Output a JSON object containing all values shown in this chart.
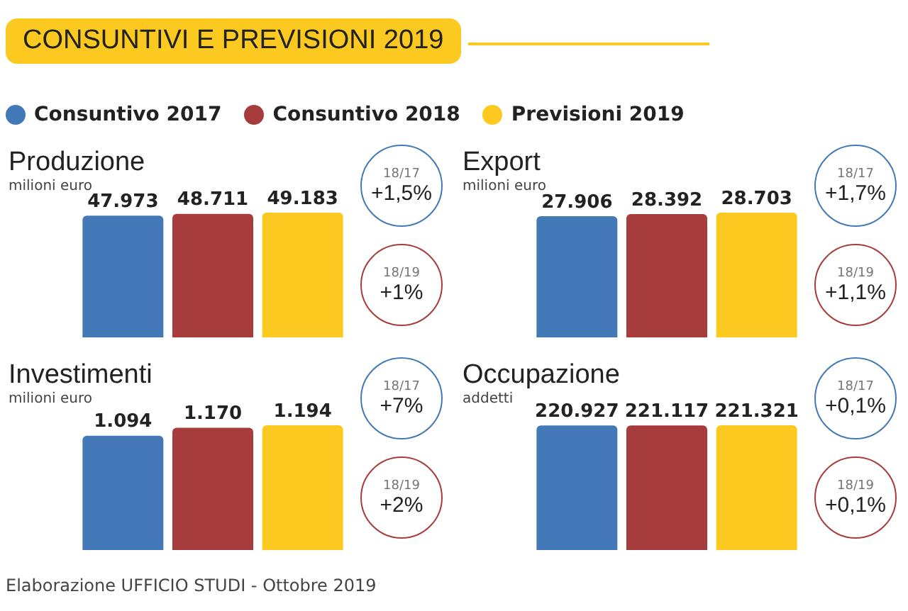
{
  "chart_data": [
    {
      "type": "other",
      "title": "CONSUNTIVI E PREVISIONI 2019",
      "annotations": [
        "Elaborazione UFFICIO STUDI - Ottobre 2019"
      ]
    },
    {
      "type": "bar",
      "title": "Produzione",
      "subtitle": "milioni euro",
      "categories": [
        null
      ],
      "legend": "top",
      "series": [
        {
          "name": "Consuntivo 2017",
          "color": "#4479b7",
          "values": [
            47973
          ],
          "value_labels": [
            "47.973"
          ]
        },
        {
          "name": "Consuntivo 2018",
          "color": "#a63d3c",
          "values": [
            48711
          ],
          "value_labels": [
            "48.711"
          ]
        },
        {
          "name": "Previsioni 2019",
          "color": "#fcc921",
          "values": [
            49183
          ],
          "value_labels": [
            "49.183"
          ]
        }
      ],
      "annotations": [
        "18/17 +1,5%",
        "18/19 +1%"
      ]
    },
    {
      "type": "bar",
      "title": "Export",
      "subtitle": "milioni euro",
      "categories": [
        null
      ],
      "series": [
        {
          "color": "#4479b7",
          "values": [
            27906
          ],
          "value_labels": [
            "27.906"
          ]
        },
        {
          "color": "#a63d3c",
          "values": [
            28392
          ],
          "value_labels": [
            "28.392"
          ]
        },
        {
          "color": "#fcc921",
          "values": [
            28703
          ],
          "value_labels": [
            "28.703"
          ]
        }
      ],
      "annotations": [
        "18/17 +1,7%",
        "18/19 +1,1%"
      ]
    },
    {
      "type": "bar",
      "title": "Investimenti",
      "subtitle": "milioni euro",
      "categories": [
        null
      ],
      "series": [
        {
          "color": "#4479b7",
          "values": [
            1094
          ],
          "value_labels": [
            "1.094"
          ]
        },
        {
          "color": "#a63d3c",
          "values": [
            1170
          ],
          "value_labels": [
            "1.170"
          ]
        },
        {
          "color": "#fcc921",
          "values": [
            1194
          ],
          "value_labels": [
            "1.194"
          ]
        }
      ],
      "annotations": [
        "18/17 +7%",
        "18/19 +2%"
      ]
    },
    {
      "type": "bar",
      "title": "Occupazione",
      "subtitle": "addetti",
      "categories": [
        null
      ],
      "series": [
        {
          "color": "#4479b7",
          "values": [
            220927
          ],
          "value_labels": [
            "220.927"
          ]
        },
        {
          "color": "#a63d3c",
          "values": [
            221117
          ],
          "value_labels": [
            "221.117"
          ]
        },
        {
          "color": "#fcc921",
          "values": [
            221321
          ],
          "value_labels": [
            "221.321"
          ]
        }
      ],
      "annotations": [
        "18/17 +0,1%",
        "18/19 +0,1%"
      ]
    }
  ]
}
